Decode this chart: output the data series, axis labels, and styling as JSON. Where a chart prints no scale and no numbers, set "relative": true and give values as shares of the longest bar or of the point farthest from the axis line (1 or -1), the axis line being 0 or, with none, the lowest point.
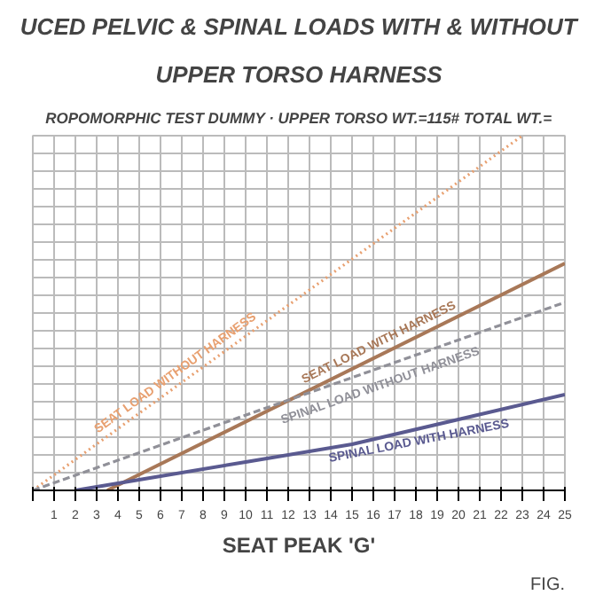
{
  "chart_data": {
    "type": "line",
    "title": "UCED PELVIC & SPINAL LOADS WITH & WITHOUT",
    "subtitle": "UPPER TORSO HARNESS",
    "annotations": [
      "ROPOMORPHIC TEST DUMMY · UPPER TORSO WT.=115# TOTAL WT.=",
      "FIG."
    ],
    "xlabel": "SEAT PEAK 'G'",
    "relative": true,
    "xlim": [
      0,
      25
    ],
    "xticks": [
      {
        "value": 0,
        "label": null
      },
      1,
      2,
      3,
      4,
      5,
      6,
      7,
      8,
      9,
      10,
      11,
      12,
      13,
      14,
      15,
      16,
      17,
      18,
      19,
      20,
      21,
      22,
      23,
      24,
      25
    ],
    "grid": true,
    "tick_labels": "x",
    "series": [
      {
        "name": "SEAT LOAD WITHOUT HARNESS",
        "color": "#e8a070",
        "line_style": "dotted",
        "x": [
          0,
          23
        ],
        "values": [
          0,
          1
        ]
      },
      {
        "name": "SEAT LOAD WITH HARNESS",
        "color": "#a87858",
        "line_style": "solid",
        "x": [
          3.5,
          25
        ],
        "values": [
          0,
          0.64
        ]
      },
      {
        "name": "SPINAL LOAD WITHOUT HARNESS",
        "color": "#909098",
        "line_style": "dashed",
        "x": [
          0,
          25
        ],
        "values": [
          0,
          0.53
        ]
      },
      {
        "name": "SPINAL LOAD WITH HARNESS",
        "color": "#5a5a90",
        "line_style": "solid",
        "x": [
          2,
          5,
          10,
          15,
          20,
          25
        ],
        "values": [
          0,
          0.03,
          0.08,
          0.13,
          0.2,
          0.27
        ]
      }
    ]
  }
}
